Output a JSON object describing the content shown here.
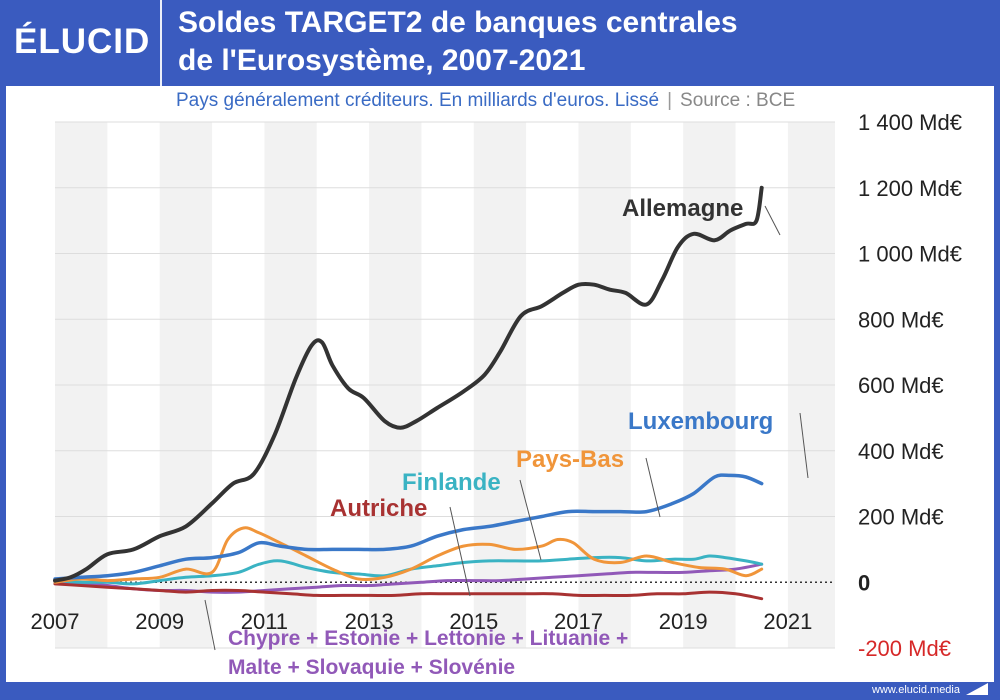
{
  "header": {
    "logo": "ÉLUCID",
    "title_line1": "Soldes TARGET2 de banques centrales",
    "title_line2": "de l'Eurosystème, 2007-2021",
    "subtitle": "Pays généralement créditeurs. En milliards d'euros. Lissé",
    "separator": "|",
    "source": "Source : BCE"
  },
  "footer": {
    "url": "www.elucid.media"
  },
  "colors": {
    "brand": "#3a5bbf",
    "allemagne": "#333333",
    "luxembourg": "#3a78c8",
    "pays_bas": "#f0953a",
    "finlande": "#3ab3c3",
    "autriche": "#a83232",
    "autres": "#9159b8",
    "negative_label": "#d62828",
    "shade": "#f2f2f2"
  },
  "chart_data": {
    "type": "line",
    "ylim": [
      -200,
      1400
    ],
    "yticks": [
      {
        "value": 1400,
        "label": "1 400 Md€"
      },
      {
        "value": 1200,
        "label": "1 200 Md€"
      },
      {
        "value": 1000,
        "label": "1 000 Md€"
      },
      {
        "value": 800,
        "label": "800 Md€"
      },
      {
        "value": 600,
        "label": "600 Md€"
      },
      {
        "value": 400,
        "label": "400 Md€"
      },
      {
        "value": 200,
        "label": "200 Md€"
      },
      {
        "value": 0,
        "label": "0"
      },
      {
        "value": -200,
        "label": "-200 Md€"
      }
    ],
    "xlim": [
      2007.0,
      2021.9
    ],
    "xticks": [
      2007,
      2009,
      2011,
      2013,
      2015,
      2017,
      2019,
      2021
    ],
    "shaded_years": [
      2007,
      2009,
      2011,
      2013,
      2015,
      2017,
      2019,
      2021
    ],
    "series": [
      {
        "name": "Allemagne",
        "color_key": "allemagne",
        "width": 4,
        "points": [
          [
            2007.0,
            5
          ],
          [
            2007.3,
            15
          ],
          [
            2007.6,
            40
          ],
          [
            2008.0,
            85
          ],
          [
            2008.5,
            100
          ],
          [
            2009.0,
            140
          ],
          [
            2009.5,
            170
          ],
          [
            2010.0,
            240
          ],
          [
            2010.4,
            300
          ],
          [
            2010.8,
            330
          ],
          [
            2011.2,
            450
          ],
          [
            2011.6,
            620
          ],
          [
            2011.9,
            720
          ],
          [
            2012.1,
            730
          ],
          [
            2012.3,
            660
          ],
          [
            2012.6,
            590
          ],
          [
            2012.9,
            560
          ],
          [
            2013.3,
            490
          ],
          [
            2013.6,
            470
          ],
          [
            2013.9,
            490
          ],
          [
            2014.3,
            530
          ],
          [
            2014.8,
            580
          ],
          [
            2015.2,
            630
          ],
          [
            2015.5,
            700
          ],
          [
            2015.9,
            810
          ],
          [
            2016.3,
            840
          ],
          [
            2016.7,
            880
          ],
          [
            2017.0,
            905
          ],
          [
            2017.3,
            905
          ],
          [
            2017.6,
            890
          ],
          [
            2017.9,
            880
          ],
          [
            2018.3,
            845
          ],
          [
            2018.6,
            920
          ],
          [
            2018.9,
            1020
          ],
          [
            2019.2,
            1060
          ],
          [
            2019.6,
            1040
          ],
          [
            2019.9,
            1070
          ],
          [
            2020.2,
            1090
          ],
          [
            2020.4,
            1100
          ],
          [
            2020.5,
            1200
          ]
        ]
      },
      {
        "name": "Luxembourg",
        "color_key": "luxembourg",
        "width": 3.5,
        "points": [
          [
            2007.0,
            10
          ],
          [
            2007.5,
            15
          ],
          [
            2008.0,
            20
          ],
          [
            2008.5,
            30
          ],
          [
            2009.0,
            50
          ],
          [
            2009.5,
            70
          ],
          [
            2010.0,
            75
          ],
          [
            2010.5,
            90
          ],
          [
            2010.9,
            120
          ],
          [
            2011.3,
            110
          ],
          [
            2011.8,
            100
          ],
          [
            2012.3,
            100
          ],
          [
            2012.8,
            100
          ],
          [
            2013.3,
            100
          ],
          [
            2013.8,
            110
          ],
          [
            2014.3,
            140
          ],
          [
            2014.8,
            160
          ],
          [
            2015.3,
            170
          ],
          [
            2015.8,
            185
          ],
          [
            2016.3,
            200
          ],
          [
            2016.8,
            215
          ],
          [
            2017.3,
            215
          ],
          [
            2017.8,
            215
          ],
          [
            2018.3,
            215
          ],
          [
            2018.8,
            240
          ],
          [
            2019.2,
            270
          ],
          [
            2019.6,
            320
          ],
          [
            2019.9,
            325
          ],
          [
            2020.2,
            320
          ],
          [
            2020.5,
            300
          ]
        ]
      },
      {
        "name": "Pays-Bas",
        "color_key": "pays_bas",
        "width": 3,
        "points": [
          [
            2007.0,
            0
          ],
          [
            2007.5,
            10
          ],
          [
            2008.0,
            5
          ],
          [
            2008.5,
            10
          ],
          [
            2009.0,
            15
          ],
          [
            2009.5,
            40
          ],
          [
            2010.0,
            30
          ],
          [
            2010.3,
            130
          ],
          [
            2010.6,
            165
          ],
          [
            2010.9,
            150
          ],
          [
            2011.3,
            120
          ],
          [
            2011.8,
            80
          ],
          [
            2012.3,
            40
          ],
          [
            2012.8,
            10
          ],
          [
            2013.3,
            15
          ],
          [
            2013.8,
            40
          ],
          [
            2014.3,
            80
          ],
          [
            2014.8,
            110
          ],
          [
            2015.3,
            115
          ],
          [
            2015.8,
            100
          ],
          [
            2016.3,
            110
          ],
          [
            2016.6,
            130
          ],
          [
            2016.9,
            120
          ],
          [
            2017.3,
            70
          ],
          [
            2017.8,
            60
          ],
          [
            2018.3,
            80
          ],
          [
            2018.8,
            60
          ],
          [
            2019.3,
            45
          ],
          [
            2019.8,
            40
          ],
          [
            2020.2,
            20
          ],
          [
            2020.5,
            40
          ]
        ]
      },
      {
        "name": "Finlande",
        "color_key": "finlande",
        "width": 3,
        "points": [
          [
            2007.0,
            5
          ],
          [
            2007.5,
            0
          ],
          [
            2008.0,
            0
          ],
          [
            2008.5,
            -5
          ],
          [
            2009.0,
            5
          ],
          [
            2009.5,
            15
          ],
          [
            2010.0,
            20
          ],
          [
            2010.5,
            30
          ],
          [
            2010.9,
            55
          ],
          [
            2011.3,
            65
          ],
          [
            2011.8,
            45
          ],
          [
            2012.3,
            30
          ],
          [
            2012.8,
            25
          ],
          [
            2013.3,
            20
          ],
          [
            2013.8,
            40
          ],
          [
            2014.3,
            50
          ],
          [
            2014.8,
            60
          ],
          [
            2015.3,
            65
          ],
          [
            2015.8,
            65
          ],
          [
            2016.3,
            65
          ],
          [
            2016.8,
            70
          ],
          [
            2017.3,
            75
          ],
          [
            2017.8,
            75
          ],
          [
            2018.3,
            65
          ],
          [
            2018.8,
            70
          ],
          [
            2019.2,
            70
          ],
          [
            2019.5,
            80
          ],
          [
            2019.8,
            75
          ],
          [
            2020.2,
            65
          ],
          [
            2020.5,
            55
          ]
        ]
      },
      {
        "name": "Autriche",
        "color_key": "autriche",
        "width": 3,
        "points": [
          [
            2007.0,
            -5
          ],
          [
            2007.5,
            -10
          ],
          [
            2008.0,
            -15
          ],
          [
            2008.5,
            -20
          ],
          [
            2009.0,
            -25
          ],
          [
            2009.5,
            -30
          ],
          [
            2010.0,
            -25
          ],
          [
            2010.5,
            -25
          ],
          [
            2011.0,
            -30
          ],
          [
            2011.5,
            -35
          ],
          [
            2012.0,
            -40
          ],
          [
            2012.5,
            -40
          ],
          [
            2013.0,
            -40
          ],
          [
            2013.5,
            -40
          ],
          [
            2014.0,
            -35
          ],
          [
            2014.5,
            -35
          ],
          [
            2015.0,
            -35
          ],
          [
            2015.5,
            -35
          ],
          [
            2016.0,
            -35
          ],
          [
            2016.5,
            -35
          ],
          [
            2017.0,
            -40
          ],
          [
            2017.5,
            -40
          ],
          [
            2018.0,
            -40
          ],
          [
            2018.5,
            -35
          ],
          [
            2019.0,
            -35
          ],
          [
            2019.5,
            -30
          ],
          [
            2020.0,
            -35
          ],
          [
            2020.5,
            -50
          ]
        ]
      },
      {
        "name": "Chypre + Estonie + Lettonie + Lituanie + Malte + Slovaquie + Slovénie",
        "color_key": "autres",
        "width": 3,
        "points": [
          [
            2007.0,
            0
          ],
          [
            2007.5,
            -5
          ],
          [
            2008.0,
            -10
          ],
          [
            2008.5,
            -20
          ],
          [
            2009.0,
            -25
          ],
          [
            2009.5,
            -25
          ],
          [
            2010.0,
            -30
          ],
          [
            2010.5,
            -30
          ],
          [
            2011.0,
            -25
          ],
          [
            2011.5,
            -20
          ],
          [
            2012.0,
            -15
          ],
          [
            2012.5,
            -10
          ],
          [
            2013.0,
            -10
          ],
          [
            2013.5,
            -5
          ],
          [
            2014.0,
            0
          ],
          [
            2014.5,
            5
          ],
          [
            2015.0,
            5
          ],
          [
            2015.5,
            5
          ],
          [
            2016.0,
            10
          ],
          [
            2016.5,
            15
          ],
          [
            2017.0,
            20
          ],
          [
            2017.5,
            25
          ],
          [
            2018.0,
            30
          ],
          [
            2018.5,
            30
          ],
          [
            2019.0,
            30
          ],
          [
            2019.5,
            35
          ],
          [
            2020.0,
            40
          ],
          [
            2020.5,
            55
          ]
        ]
      }
    ],
    "labels": [
      {
        "series": "Allemagne",
        "text": "Allemagne",
        "color_key": "allemagne"
      },
      {
        "series": "Luxembourg",
        "text": "Luxembourg",
        "color_key": "luxembourg"
      },
      {
        "series": "Pays-Bas",
        "text": "Pays-Bas",
        "color_key": "pays_bas"
      },
      {
        "series": "Finlande",
        "text": "Finlande",
        "color_key": "finlande"
      },
      {
        "series": "Autriche",
        "text": "Autriche",
        "color_key": "autriche"
      },
      {
        "series": "Chypre + Estonie + Lettonie + Lituanie + Malte + Slovaquie + Slovénie",
        "text_line1": "Chypre + Estonie + Lettonie + Lituanie +",
        "text_line2": "Malte + Slovaquie + Slovénie",
        "color_key": "autres"
      }
    ]
  }
}
